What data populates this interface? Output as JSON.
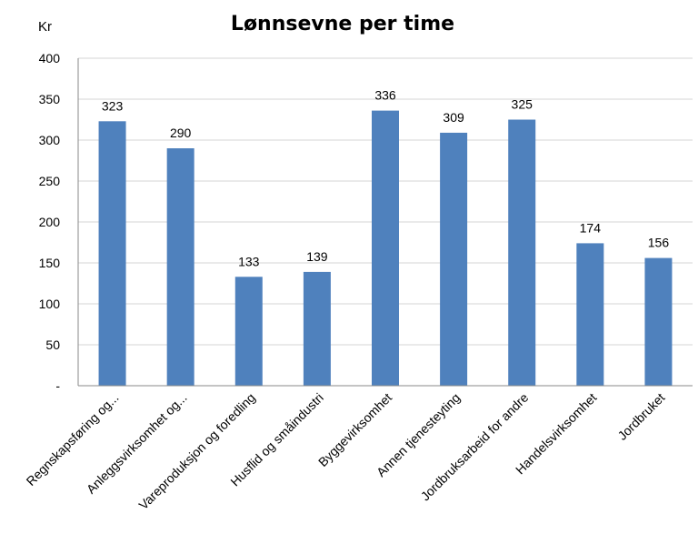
{
  "chart_data": {
    "type": "bar",
    "title": "Lønnsevne per time",
    "ylabel": "Kr",
    "xlabel": "",
    "categories": [
      "Regnskapsføring og...",
      "Anleggsvirksomhet og...",
      "Vareproduksjon og foredling",
      "Husflid og småindustri",
      "Byggevirksomhet",
      "Annen tjenesteyting",
      "Jordbruksarbeid for andre",
      "Handelsvirksomhet",
      "Jordbruket"
    ],
    "values": [
      323,
      290,
      133,
      139,
      336,
      309,
      325,
      174,
      156
    ],
    "data_labels": [
      "323",
      "290",
      "133",
      "139",
      "336",
      "309",
      "325",
      "174",
      "156"
    ],
    "ylim": [
      0,
      400
    ],
    "yticks": [
      0,
      50,
      100,
      150,
      200,
      250,
      300,
      350,
      400
    ],
    "ytick_labels": [
      "-",
      "50",
      "100",
      "150",
      "200",
      "250",
      "300",
      "350",
      "400"
    ],
    "grid": true,
    "legend": "none",
    "bar_color": "#4f81bd"
  }
}
